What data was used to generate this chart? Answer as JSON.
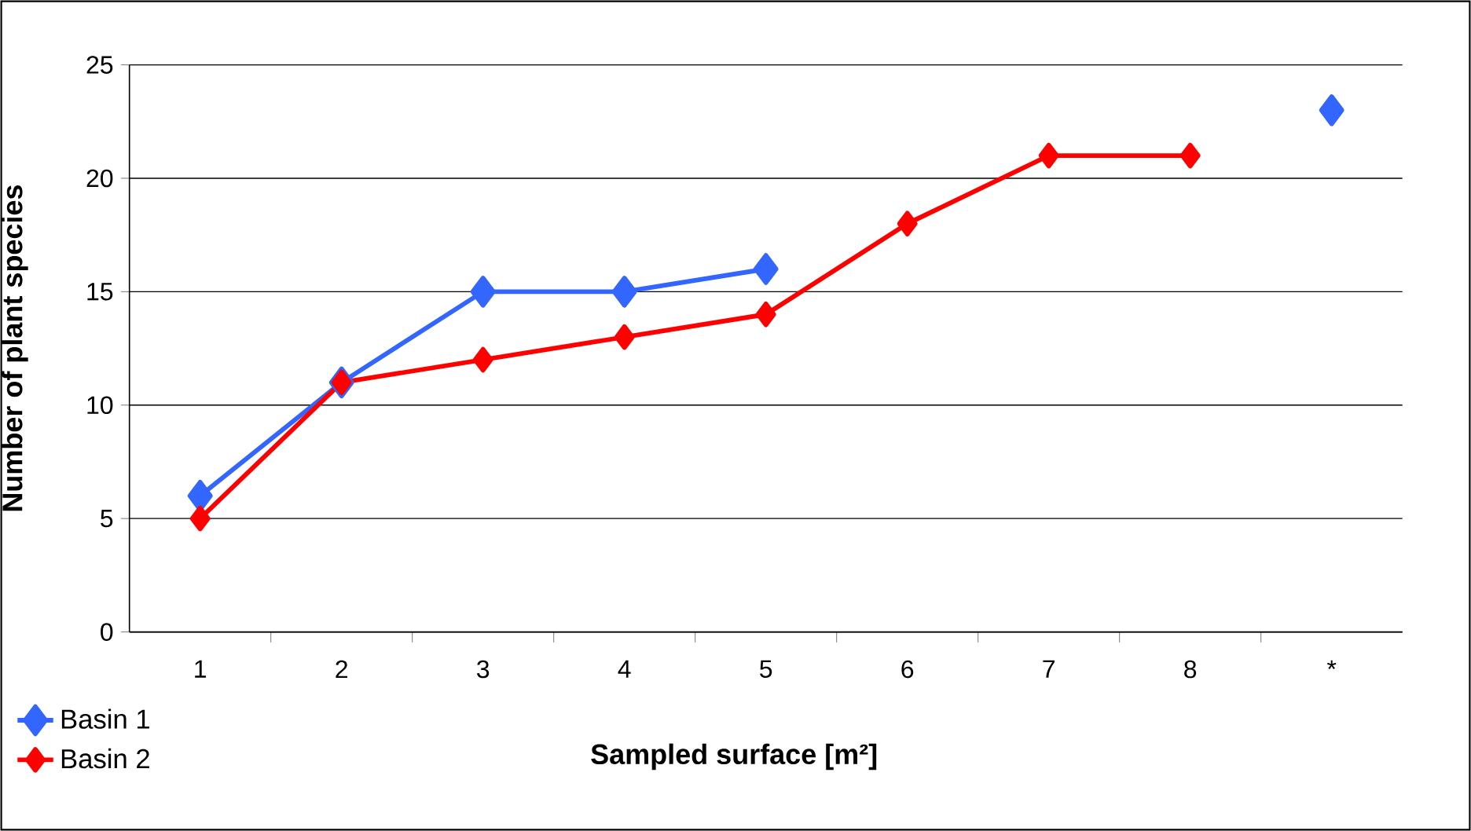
{
  "chart_data": {
    "type": "line",
    "xlabel": "Sampled surface [m²]",
    "ylabel": "Number of plant species",
    "categories": [
      "1",
      "2",
      "3",
      "4",
      "5",
      "6",
      "7",
      "8",
      "*"
    ],
    "series": [
      {
        "name": "Basin 1",
        "color": "#3366ff",
        "values": [
          6,
          11,
          15,
          15,
          16,
          null,
          null,
          null,
          23
        ]
      },
      {
        "name": "Basin 2",
        "color": "#ff0000",
        "values": [
          5,
          11,
          12,
          13,
          14,
          18,
          21,
          21,
          null
        ]
      }
    ],
    "ylim": [
      0,
      25
    ],
    "yticks": [
      0,
      5,
      10,
      15,
      20,
      25
    ],
    "grid": "y",
    "legend": "bottom left",
    "marker": "diamond",
    "line_style": "solid"
  }
}
